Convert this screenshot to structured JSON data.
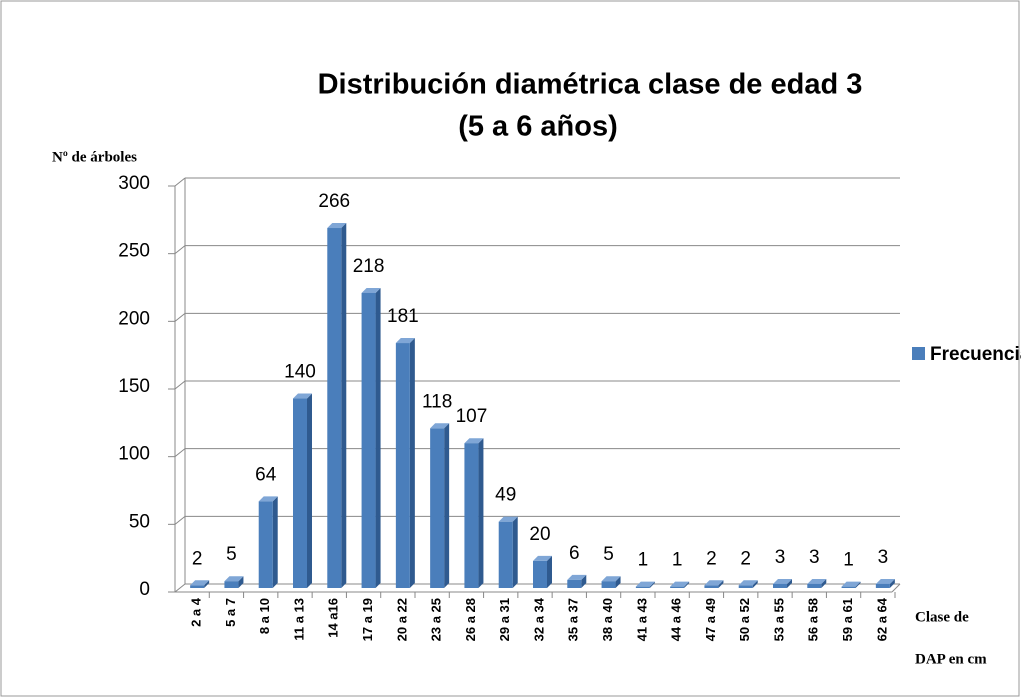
{
  "chart_data": {
    "type": "bar",
    "title": "Distribución diamétrica clase de edad 3",
    "subtitle": "(5 a 6 años)",
    "y_label": "Nº de árboles",
    "x_label": [
      "Clase de",
      "DAP en cm"
    ],
    "categories": [
      "2 a 4",
      "5 a 7",
      "8 a 10",
      "11 a 13",
      "14 a16",
      "17 a 19",
      "20 a 22",
      "23 a 25",
      "26 a 28",
      "29 a 31",
      "32 a 34",
      "35 a 37",
      "38 a 40",
      "41 a 43",
      "44 a 46",
      "47 a 49",
      "50 a 52",
      "53 a 55",
      "56 a 58",
      "59 a 61",
      "62 a 64"
    ],
    "series": [
      {
        "name": "Frecuencia",
        "color": "#4a7ebb",
        "values": [
          2,
          5,
          64,
          140,
          266,
          218,
          181,
          118,
          107,
          49,
          20,
          6,
          5,
          1,
          1,
          2,
          2,
          3,
          3,
          1,
          3
        ]
      }
    ],
    "ylim": [
      0,
      300
    ],
    "yticks": [
      0,
      50,
      100,
      150,
      200,
      250,
      300
    ],
    "grid": true,
    "legend": "right"
  }
}
